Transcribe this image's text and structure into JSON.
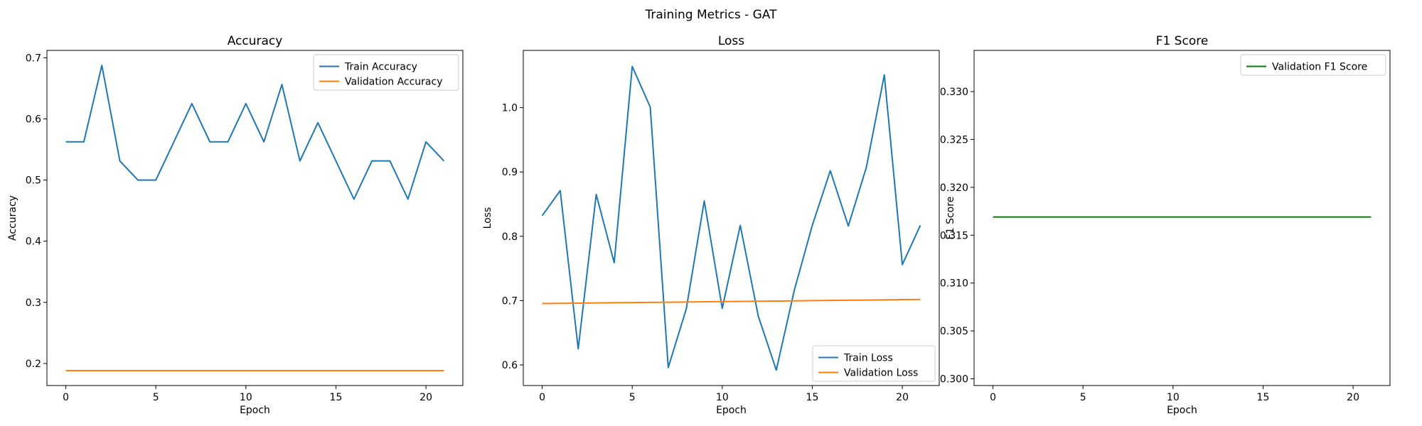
{
  "figure": {
    "suptitle": "Training Metrics - GAT"
  },
  "colors": {
    "train": "#1f77b4",
    "validation": "#ff7f0e",
    "f1": "#008000"
  },
  "chart_data": [
    {
      "type": "line",
      "title": "Accuracy",
      "xlabel": "Epoch",
      "ylabel": "Accuracy",
      "xlim": [
        -1.05,
        22.05
      ],
      "ylim": [
        0.164,
        0.712
      ],
      "xticks": [
        0,
        5,
        10,
        15,
        20
      ],
      "xtick_labels": [
        "0",
        "5",
        "10",
        "15",
        "20"
      ],
      "yticks": [
        0.2,
        0.3,
        0.4,
        0.5,
        0.6,
        0.7
      ],
      "ytick_labels": [
        "0.2",
        "0.3",
        "0.4",
        "0.5",
        "0.6",
        "0.7"
      ],
      "legend": "top-right",
      "grid": false,
      "x": [
        0,
        1,
        2,
        3,
        4,
        5,
        6,
        7,
        8,
        9,
        10,
        11,
        12,
        13,
        14,
        15,
        16,
        17,
        18,
        19,
        20,
        21
      ],
      "series": [
        {
          "name": "Train Accuracy",
          "color": "#1f77b4",
          "values": [
            0.5625,
            0.5625,
            0.6875,
            0.53125,
            0.5,
            0.5,
            0.5625,
            0.625,
            0.5625,
            0.5625,
            0.625,
            0.5625,
            0.65625,
            0.53125,
            0.59375,
            0.53125,
            0.46875,
            0.53125,
            0.53125,
            0.46875,
            0.5625,
            0.53125
          ]
        },
        {
          "name": "Validation Accuracy",
          "color": "#ff7f0e",
          "values": [
            0.1884,
            0.1884,
            0.1884,
            0.1884,
            0.1884,
            0.1884,
            0.1884,
            0.1884,
            0.1884,
            0.1884,
            0.1884,
            0.1884,
            0.1884,
            0.1884,
            0.1884,
            0.1884,
            0.1884,
            0.1884,
            0.1884,
            0.1884,
            0.1884,
            0.1884
          ]
        }
      ]
    },
    {
      "type": "line",
      "title": "Loss",
      "xlabel": "Epoch",
      "ylabel": "Loss",
      "xlim": [
        -1.05,
        22.05
      ],
      "ylim": [
        0.568,
        1.089
      ],
      "xticks": [
        0,
        5,
        10,
        15,
        20
      ],
      "xtick_labels": [
        "0",
        "5",
        "10",
        "15",
        "20"
      ],
      "yticks": [
        0.6,
        0.7,
        0.8,
        0.9,
        1.0
      ],
      "ytick_labels": [
        "0.6",
        "0.7",
        "0.8",
        "0.9",
        "1.0"
      ],
      "legend": "bottom-right",
      "grid": false,
      "x": [
        0,
        1,
        2,
        3,
        4,
        5,
        6,
        7,
        8,
        9,
        10,
        11,
        12,
        13,
        14,
        15,
        16,
        17,
        18,
        19,
        20,
        21
      ],
      "series": [
        {
          "name": "Train Loss",
          "color": "#1f77b4",
          "values": [
            0.832,
            0.871,
            0.625,
            0.865,
            0.759,
            1.064,
            1.001,
            0.596,
            0.687,
            0.855,
            0.688,
            0.817,
            0.676,
            0.592,
            0.716,
            0.817,
            0.902,
            0.816,
            0.907,
            1.051,
            0.756,
            0.817
          ]
        },
        {
          "name": "Validation Loss",
          "color": "#ff7f0e",
          "values": [
            0.6955,
            0.6958,
            0.6961,
            0.6964,
            0.6967,
            0.697,
            0.6973,
            0.6976,
            0.6979,
            0.6982,
            0.6985,
            0.6988,
            0.6991,
            0.6994,
            0.6997,
            0.7,
            0.7003,
            0.7006,
            0.7009,
            0.7012,
            0.7015,
            0.7018
          ]
        }
      ]
    },
    {
      "type": "line",
      "title": "F1 Score",
      "xlabel": "Epoch",
      "ylabel": "F1 Score",
      "xlim": [
        -1.05,
        22.05
      ],
      "ylim": [
        0.2993,
        0.3343
      ],
      "xticks": [
        0,
        5,
        10,
        15,
        20
      ],
      "xtick_labels": [
        "0",
        "5",
        "10",
        "15",
        "20"
      ],
      "yticks": [
        0.3,
        0.305,
        0.31,
        0.315,
        0.32,
        0.325,
        0.33
      ],
      "ytick_labels": [
        "0.300",
        "0.305",
        "0.310",
        "0.315",
        "0.320",
        "0.325",
        "0.330"
      ],
      "legend": "top-right",
      "grid": false,
      "x": [
        0,
        1,
        2,
        3,
        4,
        5,
        6,
        7,
        8,
        9,
        10,
        11,
        12,
        13,
        14,
        15,
        16,
        17,
        18,
        19,
        20,
        21
      ],
      "series": [
        {
          "name": "Validation F1 Score",
          "color": "#008000",
          "values": [
            0.3169,
            0.3169,
            0.3169,
            0.3169,
            0.3169,
            0.3169,
            0.3169,
            0.3169,
            0.3169,
            0.3169,
            0.3169,
            0.3169,
            0.3169,
            0.3169,
            0.3169,
            0.3169,
            0.3169,
            0.3169,
            0.3169,
            0.3169,
            0.3169,
            0.3169
          ]
        }
      ]
    }
  ]
}
